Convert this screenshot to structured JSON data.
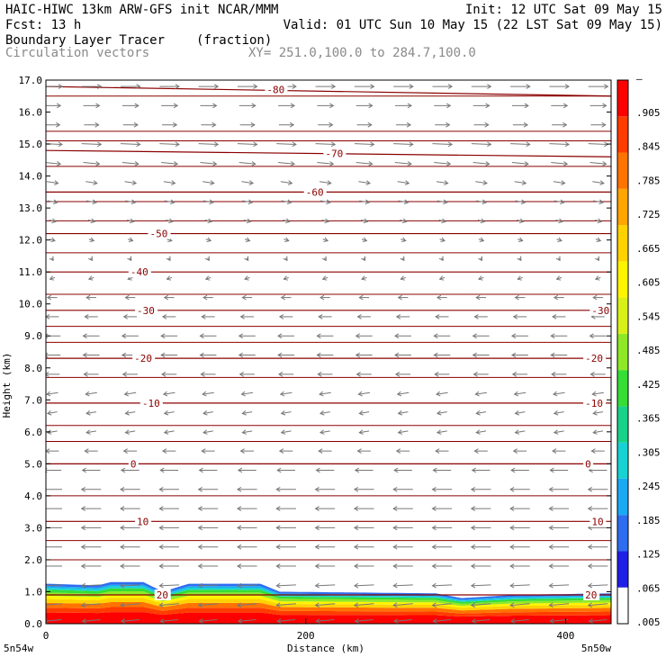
{
  "header": {
    "line1_left": "HAIC-HIWC 13km ARW-GFS init   NCAR/MMM",
    "line1_right": "Init: 12 UTC Sat 09 May 15",
    "line2_left": "Fcst:   13 h",
    "line2_right": "Valid: 01 UTC Sun 10 May 15 (22 LST Sat 09 May 15)",
    "line3_left": "Boundary Layer Tracer",
    "line3_mid": "(fraction)",
    "line4_left": "Circulation vectors",
    "line4_mid": "XY= 251.0,100.0 to 284.7,100.0"
  },
  "colors": {
    "contour": "#8b0000",
    "vector": "#777777",
    "shade_scale": [
      "#ffffff",
      "#1f1fe6",
      "#2e6cf0",
      "#1aa9f2",
      "#17d2d2",
      "#18d28a",
      "#35dd35",
      "#8fe827",
      "#d8f018",
      "#fff400",
      "#ffd200",
      "#ffa500",
      "#ff7300",
      "#ff3c00",
      "#ff0000"
    ]
  },
  "chart_data": {
    "type": "contour",
    "xlabel": "Distance (km)",
    "ylabel": "Height (km)",
    "xlim": [
      0,
      435
    ],
    "ylim": [
      0,
      17
    ],
    "x_ticks": [
      0,
      200,
      400
    ],
    "x_tick_labels": [
      "0",
      "200",
      "400"
    ],
    "x_end_labels": [
      "5n54w",
      "5n50w"
    ],
    "y_ticks": [
      "0.0",
      "1.0",
      "2.0",
      "3.0",
      "4.0",
      "5.0",
      "6.0",
      "7.0",
      "8.0",
      "9.0",
      "10.0",
      "11.0",
      "12.0",
      "13.0",
      "14.0",
      "15.0",
      "16.0",
      "17.0"
    ],
    "colorbar_labels": [
      ".005",
      ".065",
      ".125",
      ".185",
      ".245",
      ".305",
      ".365",
      ".425",
      ".485",
      ".545",
      ".605",
      ".665",
      ".725",
      ".785",
      ".845",
      ".905",
      "–"
    ],
    "isotherms": [
      {
        "label": "-80",
        "y_left": 16.8,
        "y_right": 16.5,
        "label_x": 170,
        "label_y": 16.7
      },
      {
        "label": "-70",
        "y_left": 14.8,
        "y_right": 14.6,
        "label_x": 215,
        "label_y": 14.7
      },
      {
        "label": "-60",
        "y_left": 13.5,
        "y_right": 13.5,
        "label_x": 200,
        "label_y": 13.5
      },
      {
        "label": "-50",
        "y_left": 12.2,
        "y_right": 12.2,
        "label_x": 80,
        "label_y": 12.2
      },
      {
        "label": "-40",
        "y_left": 11.0,
        "y_right": 11.0,
        "label_x": 65,
        "label_y": 11.0
      },
      {
        "label": "-30",
        "y_left": 9.8,
        "y_right": 9.8,
        "label_x": 70,
        "label_y": 9.8,
        "label2_x": 420
      },
      {
        "label": "-20",
        "y_left": 8.3,
        "y_right": 8.3,
        "label_x": 68,
        "label_y": 8.3,
        "label2_x": 415
      },
      {
        "label": "-10",
        "y_left": 6.9,
        "y_right": 6.9,
        "label_x": 74,
        "label_y": 6.9,
        "label2_x": 415
      },
      {
        "label": "0",
        "y_left": 5.0,
        "y_right": 5.0,
        "label_x": 65,
        "label_y": 5.0,
        "label2_x": 415
      },
      {
        "label": "10",
        "y_left": 3.2,
        "y_right": 3.2,
        "label_x": 70,
        "label_y": 3.2,
        "label2_x": 420
      },
      {
        "label": "20",
        "y_left": 0.9,
        "y_right": 0.9,
        "label_x": 85,
        "label_y": 0.9,
        "label2_x": 415
      }
    ],
    "extra_contour_levels_km": [
      17.0,
      16.5,
      15.4,
      15.1,
      14.3,
      13.2,
      12.6,
      11.6,
      10.3,
      9.3,
      8.8,
      7.7,
      6.2,
      5.7,
      4.0,
      2.6,
      2.0
    ],
    "tracer_top_km": [
      [
        0,
        1.25
      ],
      [
        40,
        1.2
      ],
      [
        50,
        1.3
      ],
      [
        75,
        1.3
      ],
      [
        90,
        1.0
      ],
      [
        110,
        1.25
      ],
      [
        165,
        1.25
      ],
      [
        180,
        1.0
      ],
      [
        300,
        0.95
      ],
      [
        320,
        0.8
      ],
      [
        360,
        0.9
      ],
      [
        435,
        0.95
      ]
    ],
    "wind_profile": [
      {
        "z": 16.8,
        "u": 1.2,
        "w": 0.0
      },
      {
        "z": 16.2,
        "u": 1.0,
        "w": 0.0
      },
      {
        "z": 15.6,
        "u": 0.9,
        "w": 0.0
      },
      {
        "z": 15.0,
        "u": 1.2,
        "w": -0.05
      },
      {
        "z": 14.4,
        "u": 1.0,
        "w": -0.1
      },
      {
        "z": 13.8,
        "u": 0.7,
        "w": -0.1
      },
      {
        "z": 13.2,
        "u": 0.6,
        "w": -0.1
      },
      {
        "z": 12.6,
        "u": 0.4,
        "w": -0.1
      },
      {
        "z": 12.0,
        "u": 0.3,
        "w": -0.1
      },
      {
        "z": 11.4,
        "u": 0.1,
        "w": -0.15
      },
      {
        "z": 10.8,
        "u": -0.3,
        "w": -0.1
      },
      {
        "z": 10.2,
        "u": -0.6,
        "w": 0.0
      },
      {
        "z": 9.6,
        "u": -0.8,
        "w": 0.0
      },
      {
        "z": 9.0,
        "u": -1.0,
        "w": 0.0
      },
      {
        "z": 8.4,
        "u": -1.0,
        "w": 0.0
      },
      {
        "z": 7.8,
        "u": -0.9,
        "w": 0.0
      },
      {
        "z": 7.2,
        "u": -0.7,
        "w": -0.1
      },
      {
        "z": 6.6,
        "u": -0.6,
        "w": -0.1
      },
      {
        "z": 6.0,
        "u": -0.6,
        "w": -0.1
      },
      {
        "z": 5.4,
        "u": -0.8,
        "w": 0.0
      },
      {
        "z": 4.8,
        "u": -1.1,
        "w": 0.0
      },
      {
        "z": 4.2,
        "u": -1.2,
        "w": 0.0
      },
      {
        "z": 3.6,
        "u": -1.2,
        "w": 0.0
      },
      {
        "z": 3.0,
        "u": -1.2,
        "w": 0.0
      },
      {
        "z": 2.4,
        "u": -1.2,
        "w": 0.0
      },
      {
        "z": 1.8,
        "u": -1.2,
        "w": 0.0
      },
      {
        "z": 1.2,
        "u": -1.2,
        "w": -0.05
      },
      {
        "z": 0.6,
        "u": -1.2,
        "w": -0.1
      },
      {
        "z": 0.1,
        "u": -1.1,
        "w": -0.1
      }
    ]
  }
}
